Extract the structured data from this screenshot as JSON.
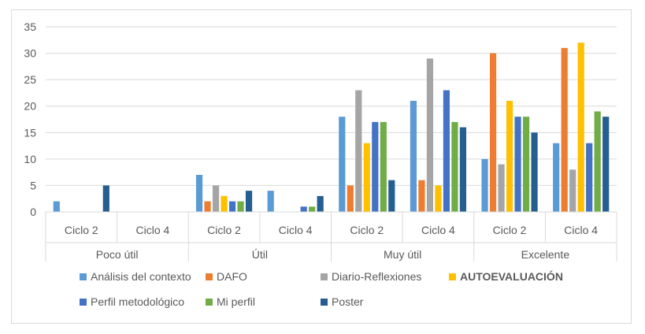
{
  "chart_data": {
    "type": "bar",
    "groups": [
      "Poco útil",
      "Útil",
      "Muy útil",
      "Excelente"
    ],
    "subcategories": [
      "Ciclo 2",
      "Ciclo 4"
    ],
    "categories": [
      "Poco útil / Ciclo 2",
      "Poco útil / Ciclo 4",
      "Útil / Ciclo 2",
      "Útil / Ciclo 4",
      "Muy útil / Ciclo 2",
      "Muy útil / Ciclo 4",
      "Excelente / Ciclo 2",
      "Excelente / Ciclo 4"
    ],
    "ylim": [
      0,
      35
    ],
    "yticks": [
      0,
      5,
      10,
      15,
      20,
      25,
      30,
      35
    ],
    "grid": true,
    "legend_position": "bottom",
    "series": [
      {
        "name": "Análisis del contexto",
        "color": "#5B9BD5",
        "bold": false,
        "values": [
          2,
          0,
          7,
          4,
          18,
          21,
          10,
          13
        ]
      },
      {
        "name": "DAFO",
        "color": "#ED7D31",
        "bold": false,
        "values": [
          0,
          0,
          2,
          0,
          5,
          6,
          30,
          31
        ]
      },
      {
        "name": "Diario-Reflexiones",
        "color": "#A5A5A5",
        "bold": false,
        "values": [
          0,
          0,
          5,
          0,
          23,
          29,
          9,
          8
        ]
      },
      {
        "name": "AUTOEVALUACIÓN",
        "color": "#FFC000",
        "bold": true,
        "values": [
          0,
          0,
          3,
          0,
          13,
          5,
          21,
          32
        ]
      },
      {
        "name": "Perfil metodológico",
        "color": "#4472C4",
        "bold": false,
        "values": [
          0,
          0,
          2,
          1,
          17,
          23,
          18,
          13
        ]
      },
      {
        "name": "Mi perfil",
        "color": "#70AD47",
        "bold": false,
        "values": [
          0,
          0,
          2,
          1,
          17,
          17,
          18,
          19
        ]
      },
      {
        "name": "Poster",
        "color": "#255E91",
        "bold": false,
        "values": [
          5,
          0,
          4,
          3,
          6,
          16,
          15,
          18
        ]
      }
    ]
  }
}
